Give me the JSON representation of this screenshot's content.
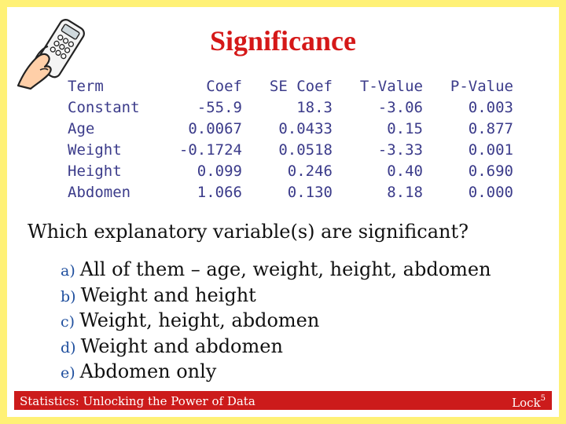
{
  "title": "Significance",
  "table": {
    "headers": [
      "Term",
      "Coef",
      "SE Coef",
      "T-Value",
      "P-Value"
    ],
    "rows": [
      [
        "Constant",
        "-55.9",
        "18.3",
        "-3.06",
        "0.003"
      ],
      [
        "Age",
        "0.0067",
        "0.0433",
        "0.15",
        "0.877"
      ],
      [
        "Weight",
        "-0.1724",
        "0.0518",
        "-3.33",
        "0.001"
      ],
      [
        "Height",
        "0.099",
        "0.246",
        "0.40",
        "0.690"
      ],
      [
        "Abdomen",
        "1.066",
        "0.130",
        "8.18",
        "0.000"
      ]
    ]
  },
  "question": "Which explanatory variable(s) are significant?",
  "options": [
    {
      "letter": "a)",
      "text": "All of them – age, weight, height, abdomen"
    },
    {
      "letter": "b)",
      "text": "Weight and height"
    },
    {
      "letter": "c)",
      "text": "Weight, height, abdomen"
    },
    {
      "letter": "d)",
      "text": "Weight and abdomen"
    },
    {
      "letter": "e)",
      "text": "Abdomen only"
    }
  ],
  "footer": {
    "left": "Statistics: Unlocking the Power of Data",
    "right_base": "Lock",
    "right_sup": "5"
  },
  "colors": {
    "border": "#fff176",
    "title": "#d51818",
    "footer_bar": "#cc1b1b",
    "table_text": "#3b3b8a",
    "option_letter": "#1f4f9e"
  },
  "icons": {
    "clicker": "hand-holding-clicker-icon"
  }
}
